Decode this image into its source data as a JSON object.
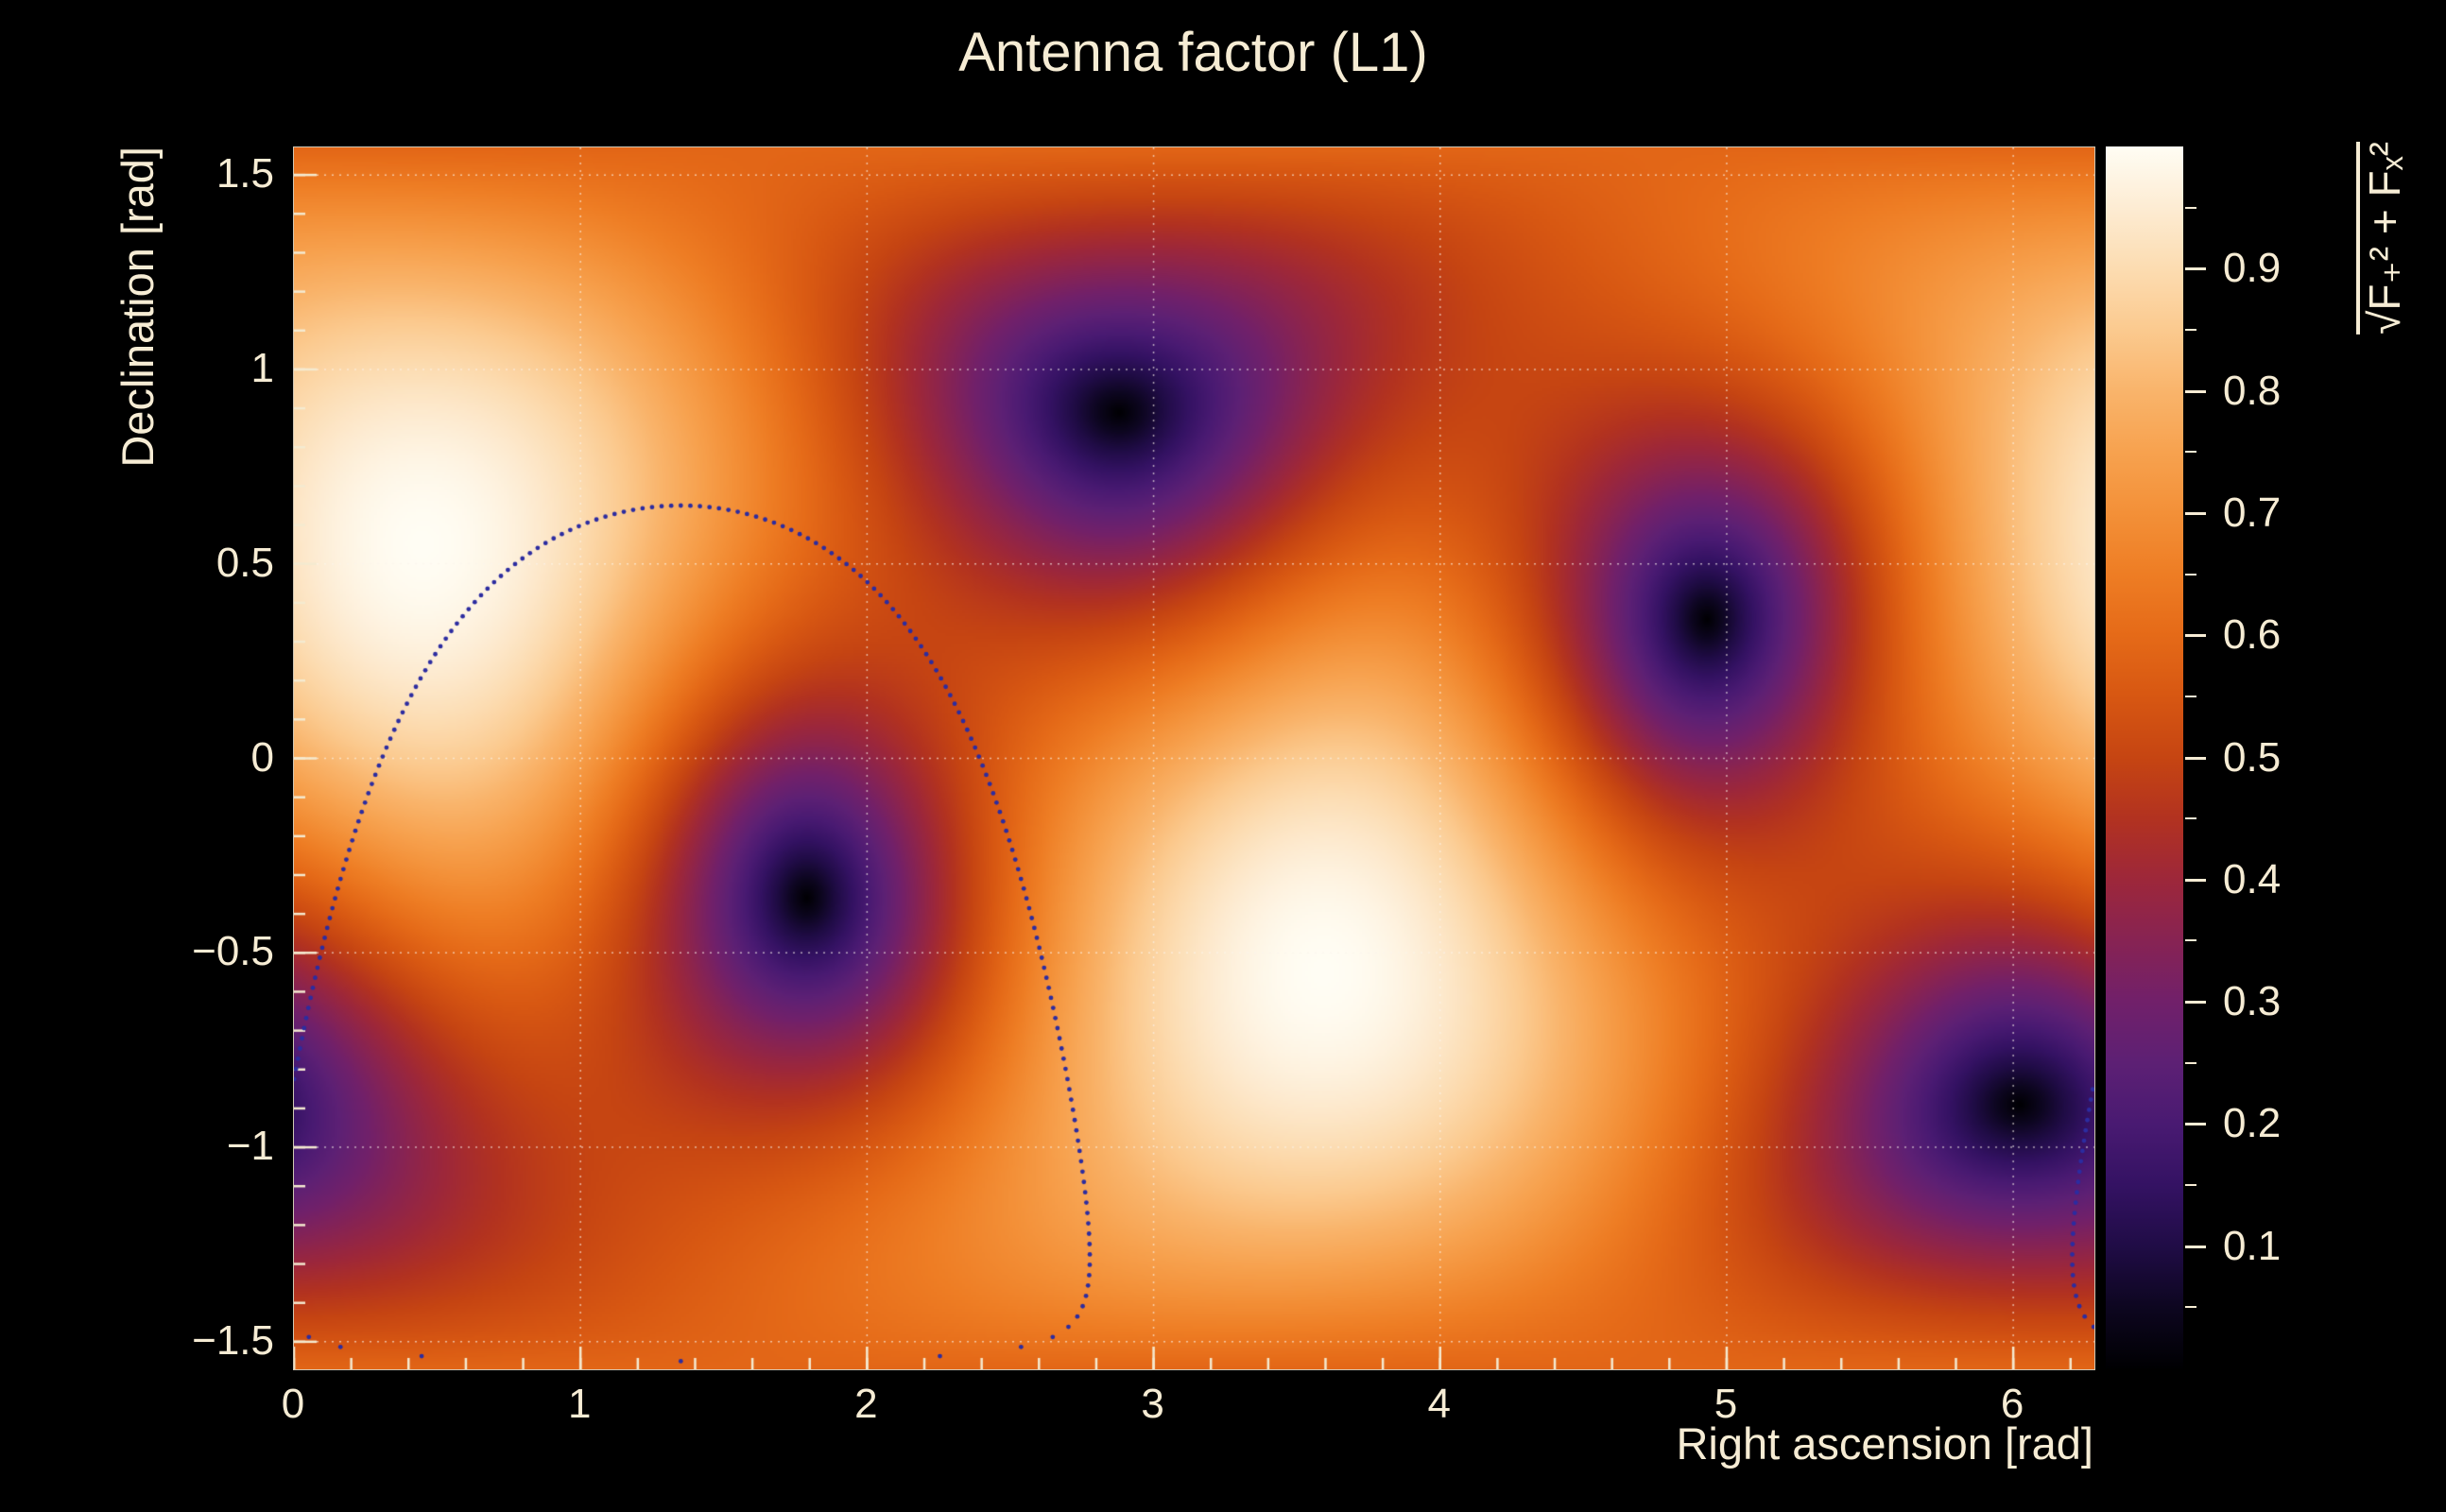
{
  "chart_data": {
    "type": "heatmap",
    "title": "Antenna factor (L1)",
    "xlabel": "Right ascension [rad]",
    "ylabel": "Declination [rad]",
    "xlim": [
      0,
      6.2832
    ],
    "ylim": [
      -1.5708,
      1.5708
    ],
    "x_ticks": [
      0,
      1,
      2,
      3,
      4,
      5,
      6
    ],
    "x_tick_labels": [
      "0",
      "1",
      "2",
      "3",
      "4",
      "5",
      "6"
    ],
    "y_ticks": [
      1.5,
      1,
      0.5,
      0,
      -0.5,
      -1,
      -1.5
    ],
    "y_tick_labels": [
      "1.5",
      "1",
      "0.5",
      "0",
      "−0.5",
      "−1",
      "−1.5"
    ],
    "grid": "dotted at major ticks",
    "colorbar": {
      "label": "√F₊² + Fₓ²",
      "min": 0,
      "max": 1,
      "major_ticks": [
        0.1,
        0.2,
        0.3,
        0.4,
        0.5,
        0.6,
        0.7,
        0.8,
        0.9
      ],
      "tick_labels": [
        "0.1",
        "0.2",
        "0.3",
        "0.4",
        "0.5",
        "0.6",
        "0.7",
        "0.8",
        "0.9"
      ]
    },
    "field": {
      "description": "Interferometer antenna-pattern magnitude sqrt(F+^2 + Fx^2) over the sky for the L1 detector; value 1 at zenith/nadir, 0 at the four nulls on the detector horizon.",
      "maxima": [
        {
          "ra": 0.45,
          "dec": 0.55,
          "value": 1.0
        },
        {
          "ra": 3.59,
          "dec": -0.55,
          "value": 1.0
        }
      ],
      "nulls": [
        {
          "ra": 2.9,
          "dec": 0.87,
          "value": 0.0
        },
        {
          "ra": 4.93,
          "dec": 0.36,
          "value": 0.0
        },
        {
          "ra": 1.79,
          "dec": -0.36,
          "value": 0.0
        },
        {
          "ra": 5.9,
          "dec": -0.87,
          "value": 0.0
        }
      ],
      "model": {
        "zenith": {
          "ra": 0.45,
          "dec": 0.55
        },
        "null_ref": {
          "ra": 2.9,
          "dec": 0.87
        }
      }
    },
    "annotation_circle": {
      "description": "Dotted sky circle (small circle on celestial sphere)",
      "center_ra": 1.35,
      "center_dec": -0.45,
      "radius_rad": 1.1,
      "style": "dotted",
      "color": "#2c2ca0"
    },
    "colormap": [
      [
        0.0,
        "#000002"
      ],
      [
        0.05,
        "#0d0620"
      ],
      [
        0.1,
        "#200c46"
      ],
      [
        0.15,
        "#341263"
      ],
      [
        0.2,
        "#491a72"
      ],
      [
        0.25,
        "#5d2074"
      ],
      [
        0.3,
        "#71206a"
      ],
      [
        0.35,
        "#872353"
      ],
      [
        0.4,
        "#9d273a"
      ],
      [
        0.45,
        "#b23220"
      ],
      [
        0.5,
        "#c64512"
      ],
      [
        0.55,
        "#d75712"
      ],
      [
        0.6,
        "#e56a18"
      ],
      [
        0.65,
        "#ee7d24"
      ],
      [
        0.7,
        "#f39038"
      ],
      [
        0.75,
        "#f7a24f"
      ],
      [
        0.8,
        "#f9b46b"
      ],
      [
        0.85,
        "#fbca8f"
      ],
      [
        0.9,
        "#fcdcb1"
      ],
      [
        0.95,
        "#fdecd3"
      ],
      [
        1.0,
        "#fffdf4"
      ]
    ],
    "style": {
      "background": "#000000",
      "text_color": "#f6ecd4",
      "grid_color": "rgba(250,245,235,0.65)"
    }
  }
}
